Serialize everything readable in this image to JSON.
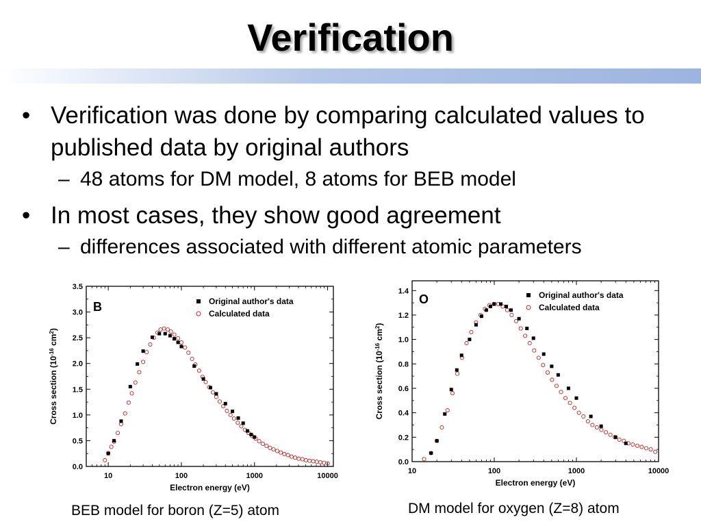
{
  "slide": {
    "title": "Verification",
    "bullets": [
      {
        "text": "Verification was done by comparing calculated values to published data by original authors",
        "sub": "48 atoms for DM model, 8 atoms for BEB model"
      },
      {
        "text": "In most cases, they show good agreement",
        "sub": "differences associated with different atomic parameters"
      }
    ],
    "bullet_glyph": "•",
    "dash_glyph": "–"
  },
  "captions": {
    "left": "BEB model for boron (Z=5) atom",
    "right": "DM model for oxygen (Z=8) atom"
  },
  "chart_data": [
    {
      "type": "scatter",
      "panel_label": "B",
      "xlabel": "Electron energy (eV)",
      "ylabel": "Cross section (10<sup>-16</sup> cm<sup>2</sup>)",
      "x_scale": "log",
      "xlim": [
        5,
        12000
      ],
      "ylim": [
        0,
        3.5
      ],
      "x_ticks": [
        10,
        100,
        1000,
        10000
      ],
      "x_tick_labels": [
        "10",
        "100",
        "1000",
        "10000"
      ],
      "y_ticks": [
        0,
        0.5,
        1.0,
        1.5,
        2.0,
        2.5,
        3.0,
        3.5
      ],
      "y_tick_labels": [
        "0.0",
        "0.5",
        "1.0",
        "1.5",
        "2.0",
        "2.5",
        "3.0",
        "3.5"
      ],
      "legend_position": "top-right",
      "series": [
        {
          "name": "Original author's data",
          "marker": "filled-square",
          "color": "#000000",
          "x": [
            10,
            12,
            15,
            20,
            25,
            30,
            40,
            50,
            60,
            70,
            80,
            90,
            100,
            150,
            200,
            250,
            300,
            400,
            500,
            600,
            700,
            800,
            900,
            1000
          ],
          "y": [
            0.25,
            0.5,
            0.88,
            1.55,
            1.99,
            2.24,
            2.51,
            2.58,
            2.58,
            2.54,
            2.48,
            2.41,
            2.33,
            1.95,
            1.7,
            1.53,
            1.41,
            1.22,
            1.07,
            0.94,
            0.84,
            0.69,
            0.62,
            0.57
          ]
        },
        {
          "name": "Calculated data",
          "marker": "open-circle",
          "color": "#cc2222",
          "x": [
            9,
            10,
            11,
            12,
            13.5,
            15,
            17,
            19,
            21,
            23.5,
            26.5,
            30,
            33.5,
            37.5,
            42,
            47,
            52,
            58,
            65,
            72,
            80,
            90,
            100,
            112,
            125,
            140,
            155,
            175,
            195,
            215,
            240,
            270,
            300,
            335,
            375,
            420,
            470,
            525,
            590,
            660,
            740,
            830,
            930,
            1040,
            1160,
            1300,
            1460,
            1630,
            1820,
            2040,
            2290,
            2560,
            2870,
            3210,
            3600,
            4030,
            4520,
            5060,
            5670,
            6350,
            7110,
            7960,
            8920,
            10000
          ],
          "y": [
            0.12,
            0.26,
            0.38,
            0.48,
            0.65,
            0.82,
            1.03,
            1.24,
            1.42,
            1.63,
            1.83,
            2.03,
            2.22,
            2.37,
            2.5,
            2.6,
            2.66,
            2.68,
            2.66,
            2.62,
            2.56,
            2.49,
            2.41,
            2.31,
            2.21,
            2.09,
            1.98,
            1.86,
            1.74,
            1.64,
            1.54,
            1.44,
            1.35,
            1.26,
            1.17,
            1.08,
            1.0,
            0.93,
            0.85,
            0.78,
            0.71,
            0.65,
            0.59,
            0.54,
            0.49,
            0.44,
            0.4,
            0.36,
            0.33,
            0.3,
            0.27,
            0.24,
            0.22,
            0.19,
            0.17,
            0.15,
            0.14,
            0.12,
            0.11,
            0.1,
            0.09,
            0.08,
            0.07,
            0.06
          ]
        }
      ]
    },
    {
      "type": "scatter",
      "panel_label": "O",
      "xlabel": "Electron energy (eV)",
      "ylabel": "Cross section (10<sup>-16</sup> cm<sup>2</sup>)",
      "x_scale": "log",
      "xlim": [
        10,
        10000
      ],
      "ylim": [
        0,
        1.48
      ],
      "x_ticks": [
        10,
        100,
        1000,
        10000
      ],
      "x_tick_labels": [
        "10",
        "100",
        "1000",
        "10000"
      ],
      "y_ticks": [
        0,
        0.2,
        0.4,
        0.6,
        0.8,
        1.0,
        1.2,
        1.4
      ],
      "y_tick_labels": [
        "0.0",
        "0.2",
        "0.4",
        "0.6",
        "0.8",
        "1.0",
        "1.2",
        "1.4"
      ],
      "legend_position": "top-right",
      "series": [
        {
          "name": "Original author's data",
          "marker": "filled-square",
          "color": "#000000",
          "x": [
            17,
            20,
            25,
            30,
            35,
            40,
            50,
            60,
            70,
            80,
            90,
            100,
            120,
            140,
            160,
            200,
            250,
            300,
            400,
            500,
            600,
            800,
            1000,
            1500,
            2000,
            3000,
            4000
          ],
          "y": [
            0.07,
            0.17,
            0.39,
            0.59,
            0.75,
            0.87,
            1.0,
            1.12,
            1.19,
            1.24,
            1.27,
            1.29,
            1.29,
            1.27,
            1.24,
            1.17,
            1.09,
            1.01,
            0.88,
            0.78,
            0.71,
            0.6,
            0.52,
            0.37,
            0.29,
            0.2,
            0.15
          ]
        },
        {
          "name": "Calculated data",
          "marker": "open-circle",
          "color": "#cc2222",
          "x": [
            14,
            17,
            20,
            23,
            27,
            31,
            35.5,
            40.5,
            46,
            52.5,
            60,
            68,
            77,
            87,
            99,
            112,
            127,
            144,
            163,
            185,
            210,
            238,
            270,
            306,
            347,
            393,
            446,
            505,
            573,
            650,
            736,
            835,
            947,
            1074,
            1218,
            1381,
            1566,
            1776,
            2014,
            2284,
            2590,
            2937,
            3330,
            3777,
            4283,
            4857,
            5508,
            6246,
            7083,
            8032,
            9108
          ],
          "y": [
            0.02,
            0.07,
            0.17,
            0.28,
            0.42,
            0.56,
            0.72,
            0.85,
            0.97,
            1.06,
            1.14,
            1.2,
            1.25,
            1.28,
            1.29,
            1.29,
            1.27,
            1.24,
            1.2,
            1.15,
            1.09,
            1.03,
            0.97,
            0.91,
            0.85,
            0.79,
            0.73,
            0.67,
            0.62,
            0.57,
            0.52,
            0.48,
            0.44,
            0.4,
            0.37,
            0.33,
            0.3,
            0.28,
            0.26,
            0.24,
            0.22,
            0.2,
            0.18,
            0.17,
            0.15,
            0.14,
            0.13,
            0.12,
            0.11,
            0.1,
            0.08
          ]
        }
      ]
    }
  ]
}
